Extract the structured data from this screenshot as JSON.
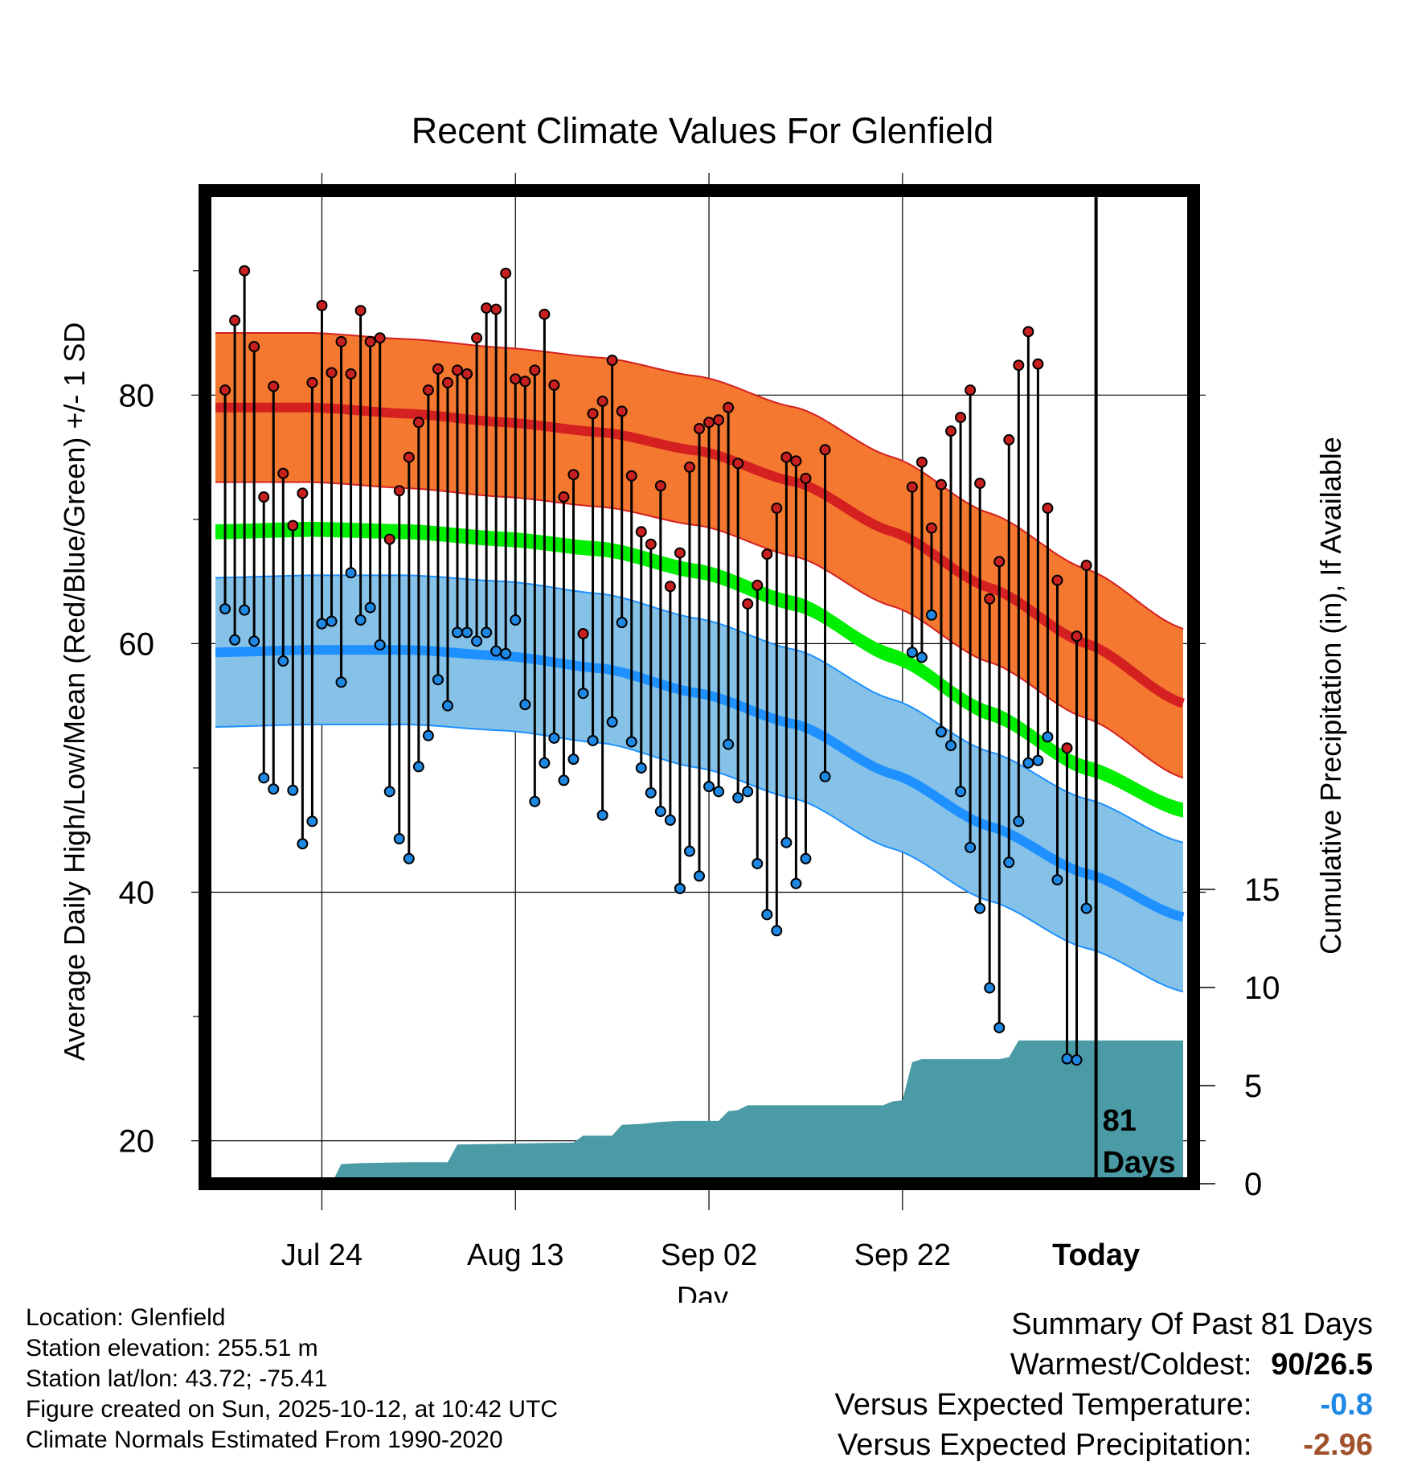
{
  "chart_data": {
    "type": "line",
    "title": "Recent Climate Values For Glenfield",
    "xlabel": "Day",
    "ylabel": "Average Daily High/Low/Mean (Red/Blue/Green) +/- 1 SD",
    "y2label": "Cumulative Precipitation (in), If Available",
    "x_ticks": [
      "Jul 24",
      "Aug 13",
      "Sep 02",
      "Sep 22",
      "Today"
    ],
    "x_tick_days": [
      -70,
      -50,
      -30,
      -10,
      10
    ],
    "xlim": [
      -81.5,
      19.5
    ],
    "ylim": [
      17,
      96
    ],
    "y_ticks": [
      20,
      40,
      60,
      80
    ],
    "y2lim": [
      0,
      40
    ],
    "y2_ticks": [
      0,
      5,
      10,
      15
    ],
    "grid": true,
    "today_marker_day": 10,
    "days_label": "81\nDays",
    "normal_days": [
      -81,
      -71,
      -61,
      -51,
      -41,
      -31,
      -21,
      -11,
      -1,
      9,
      19
    ],
    "normal_high": [
      79.0,
      79.0,
      78.5,
      77.8,
      77.0,
      75.5,
      73.0,
      69.0,
      64.5,
      60.0,
      55.2
    ],
    "high_sd": 6.0,
    "normal_mean": [
      69.0,
      69.2,
      69.0,
      68.4,
      67.6,
      65.8,
      63.2,
      59.0,
      54.4,
      50.0,
      46.6
    ],
    "normal_low": [
      59.3,
      59.5,
      59.5,
      59.0,
      58.0,
      56.0,
      53.5,
      49.5,
      45.3,
      41.5,
      38.0
    ],
    "low_sd": 6.0,
    "daily_high": [
      80.4,
      86.0,
      90.0,
      83.9,
      71.8,
      80.7,
      73.7,
      69.5,
      72.1,
      81.0,
      87.2,
      81.8,
      84.3,
      81.7,
      86.8,
      84.3,
      84.6,
      68.4,
      72.3,
      75.0,
      77.8,
      80.4,
      82.1,
      81.0,
      82.0,
      81.7,
      84.6,
      87.0,
      86.9,
      89.8,
      81.3,
      81.1,
      82.0,
      86.5,
      80.8,
      71.8,
      73.6,
      60.8,
      78.5,
      79.5,
      82.8,
      78.7,
      73.5,
      69.0,
      68.0,
      72.7,
      64.6,
      67.3,
      74.2,
      77.3,
      77.8,
      78.0,
      79.0,
      74.5,
      63.2,
      64.7,
      67.2,
      70.9,
      75.0,
      74.7,
      73.3,
      null,
      75.6,
      null,
      null,
      null,
      null,
      null,
      null,
      null,
      null,
      72.6,
      74.6,
      69.3,
      72.8,
      77.1,
      78.2,
      80.4,
      72.9,
      63.6,
      66.6,
      76.4,
      82.4,
      85.1,
      82.5,
      70.9,
      65.1,
      51.6,
      60.6,
      66.3
    ],
    "daily_low": [
      62.8,
      60.3,
      62.7,
      60.2,
      49.2,
      48.3,
      58.6,
      48.2,
      43.9,
      45.7,
      61.6,
      61.8,
      56.9,
      65.7,
      61.9,
      62.9,
      59.9,
      48.1,
      44.3,
      42.7,
      50.1,
      52.6,
      57.1,
      55.0,
      60.9,
      60.9,
      60.2,
      60.9,
      59.4,
      59.2,
      61.9,
      55.1,
      47.3,
      50.4,
      52.4,
      49.0,
      50.7,
      56.0,
      52.2,
      46.2,
      53.7,
      61.7,
      52.1,
      50.0,
      48.0,
      46.5,
      45.8,
      40.3,
      43.3,
      41.3,
      48.5,
      48.1,
      51.9,
      47.6,
      48.1,
      42.3,
      38.2,
      36.9,
      44.0,
      40.7,
      42.7,
      null,
      49.3,
      null,
      null,
      null,
      null,
      null,
      null,
      null,
      null,
      59.3,
      58.9,
      62.3,
      52.9,
      51.8,
      48.1,
      43.6,
      38.7,
      32.3,
      29.1,
      42.4,
      45.7,
      50.4,
      50.6,
      52.5,
      41.0,
      26.6,
      26.5,
      38.7
    ],
    "cumulative_precip": [
      [
        -81,
        0
      ],
      [
        -69,
        0
      ],
      [
        -68,
        1.0
      ],
      [
        -66,
        1.05
      ],
      [
        -61,
        1.1
      ],
      [
        -57,
        1.1
      ],
      [
        -56,
        2.0
      ],
      [
        -50,
        2.05
      ],
      [
        -44,
        2.1
      ],
      [
        -43,
        2.45
      ],
      [
        -40,
        2.45
      ],
      [
        -39,
        3.0
      ],
      [
        -37,
        3.05
      ],
      [
        -35,
        3.15
      ],
      [
        -33,
        3.2
      ],
      [
        -29,
        3.2
      ],
      [
        -28,
        3.7
      ],
      [
        -27,
        3.75
      ],
      [
        -26,
        4.0
      ],
      [
        -15,
        4.0
      ],
      [
        -12,
        4.0
      ],
      [
        -11,
        4.2
      ],
      [
        -10,
        4.25
      ],
      [
        -9,
        6.2
      ],
      [
        -8,
        6.35
      ],
      [
        -4,
        6.35
      ],
      [
        0,
        6.35
      ],
      [
        1,
        6.45
      ],
      [
        2,
        7.3
      ],
      [
        19,
        7.3
      ]
    ],
    "colors": {
      "high_band": "#f47830",
      "high_line": "#d42020",
      "mean_band": "#00ee00",
      "low_band": "#86c2e8",
      "low_line": "#1e90ff",
      "band_edge_high": "#d42020",
      "band_edge_low": "#1e90ff",
      "precip": "#4a9ba5",
      "high_dot": "#c82020",
      "low_dot": "#1e88e5",
      "axis": "#000000"
    }
  },
  "info": {
    "location": "Location: Glenfield",
    "elevation": "Station elevation: 255.51 m",
    "latlon": "Station lat/lon: 43.72; -75.41",
    "created": "Figure created on Sun, 2025-10-12, at 10:42 UTC",
    "normals": "Climate Normals Estimated From 1990-2020"
  },
  "summary": {
    "title": "Summary Of Past 81 Days",
    "warm_cold_label": "Warmest/Coldest:",
    "warm_cold_value": "90/26.5",
    "temp_label": "Versus Expected Temperature:",
    "temp_value": "-0.8",
    "temp_color": "#1e88e5",
    "precip_label": "Versus Expected Precipitation:",
    "precip_value": "-2.96",
    "precip_color": "#a0522d"
  }
}
